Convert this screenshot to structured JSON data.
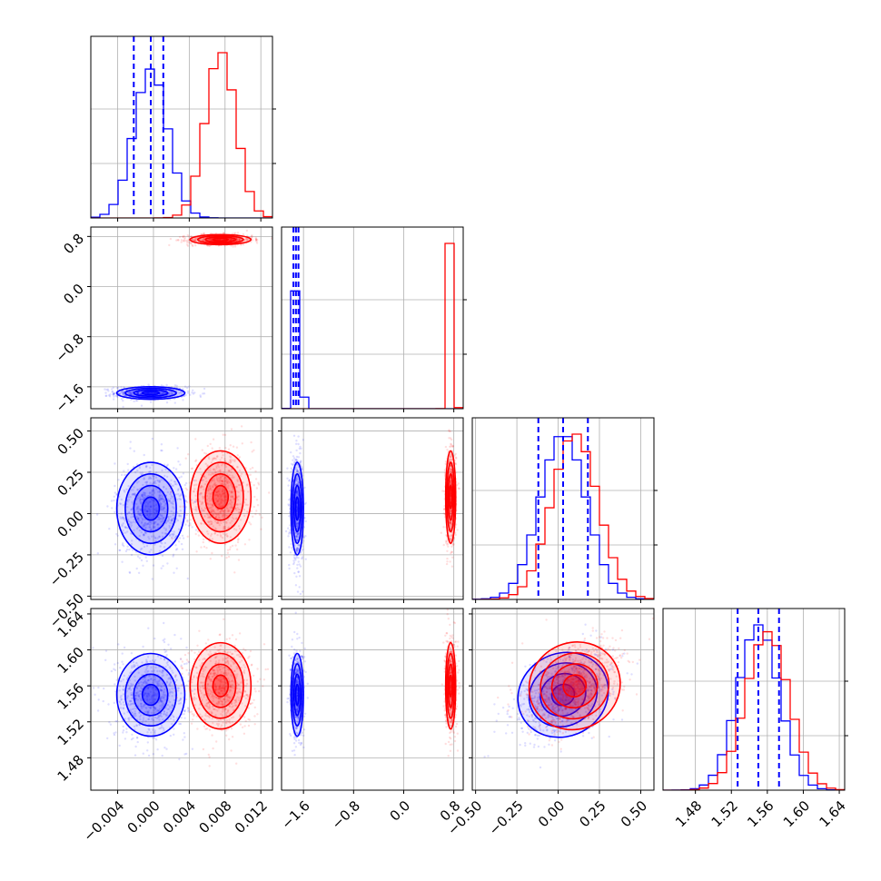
{
  "chart_data": {
    "type": "corner",
    "parameters": 4,
    "series": [
      {
        "name": "",
        "color": "#0000ff",
        "mean": [
          -0.0003,
          -1.7,
          0.03,
          1.55
        ],
        "std": [
          0.0019,
          0.05,
          0.14,
          0.023
        ],
        "corr_3_4": 0.45
      },
      {
        "name": "",
        "color": "#ff0000",
        "mean": [
          0.0075,
          0.75,
          0.1,
          1.56
        ],
        "std": [
          0.0017,
          0.04,
          0.14,
          0.024
        ],
        "corr_3_4": 0.45
      }
    ],
    "quantile_lines": {
      "color": "#0000ff",
      "values": [
        [
          -0.0022,
          -0.0003,
          0.0011
        ],
        [
          -1.76,
          -1.72,
          -1.68
        ],
        [
          -0.12,
          0.03,
          0.18
        ],
        [
          1.527,
          1.55,
          1.573
        ]
      ]
    },
    "axes": [
      {
        "range": [
          -0.007,
          0.0133
        ],
        "ticks": [
          -0.004,
          0.0,
          0.004,
          0.008,
          0.012
        ],
        "tick_labels": [
          "−0.004",
          "0.000",
          "0.004",
          "0.008",
          "0.012"
        ]
      },
      {
        "range": [
          -1.95,
          0.95
        ],
        "ticks": [
          -1.6,
          -0.8,
          0.0,
          0.8
        ],
        "tick_labels": [
          "−1.6",
          "−0.8",
          "0.0",
          "0.8"
        ]
      },
      {
        "range": [
          -0.52,
          0.58
        ],
        "ticks": [
          -0.5,
          -0.25,
          0.0,
          0.25,
          0.5
        ],
        "tick_labels": [
          "−0.50",
          "−0.25",
          "0.00",
          "0.25",
          "0.50"
        ]
      },
      {
        "range": [
          1.444,
          1.646
        ],
        "ticks": [
          1.48,
          1.52,
          1.56,
          1.6,
          1.64
        ],
        "tick_labels": [
          "1.48",
          "1.52",
          "1.56",
          "1.60",
          "1.64"
        ]
      }
    ],
    "grid": true,
    "contour_levels_sigma": [
      0.5,
      1.0,
      1.5,
      2.0
    ]
  }
}
